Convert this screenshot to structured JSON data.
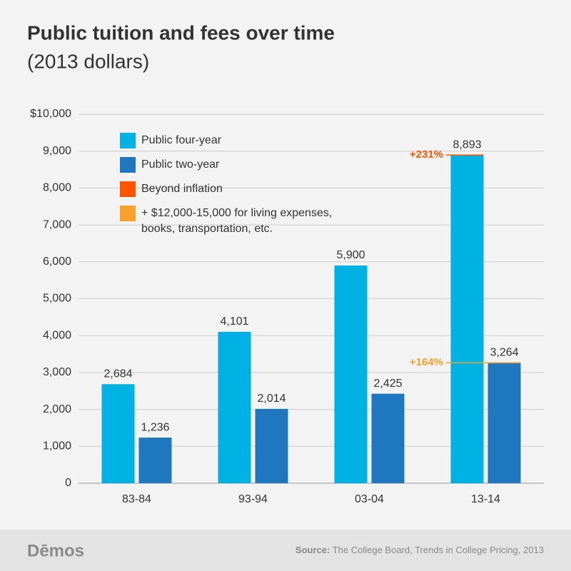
{
  "chart_data": {
    "type": "bar",
    "title": "Public tuition and fees over time",
    "subtitle": "(2013 dollars)",
    "categories": [
      "83-84",
      "93-94",
      "03-04",
      "13-14"
    ],
    "series": [
      {
        "name": "Public four-year",
        "color": "#00b2e3",
        "values": [
          2684,
          4101,
          5900,
          8893
        ],
        "value_labels": [
          "2,684",
          "4,101",
          "5,900",
          "8,893"
        ]
      },
      {
        "name": "Public two-year",
        "color": "#1f77c0",
        "values": [
          1236,
          2014,
          2425,
          3264
        ],
        "value_labels": [
          "1,236",
          "2,014",
          "2,425",
          "3,264"
        ]
      }
    ],
    "legend_extra": [
      {
        "name": "Beyond inflation",
        "color": "#ff5500"
      },
      {
        "name": "+ $12,000-15,000 for living expenses, books, transportation, etc.",
        "color": "#f7a12a"
      }
    ],
    "annotations": [
      {
        "text": "+231%",
        "color": "#ff5500"
      },
      {
        "text": "+164%",
        "color": "#f7a12a"
      }
    ],
    "ylim": [
      0,
      10000
    ],
    "yticks": [
      0,
      {
        "value": 1000,
        "label": "1,000"
      },
      {
        "value": 2000,
        "label": "2,000"
      },
      {
        "value": 3000,
        "label": "3,000"
      },
      {
        "value": 4000,
        "label": "4,000"
      },
      {
        "value": 5000,
        "label": "5,000"
      },
      {
        "value": 6000,
        "label": "6,000"
      },
      {
        "value": 7000,
        "label": "7,000"
      },
      {
        "value": 8000,
        "label": "8,000"
      },
      {
        "value": 9000,
        "label": "9,000"
      },
      {
        "value": 10000,
        "label": "$10,000"
      }
    ],
    "grid": true
  },
  "footer": {
    "logo": "Dēmos",
    "source_label": "Source:",
    "source": "The College Board, Trends in College Pricing, 2013"
  }
}
